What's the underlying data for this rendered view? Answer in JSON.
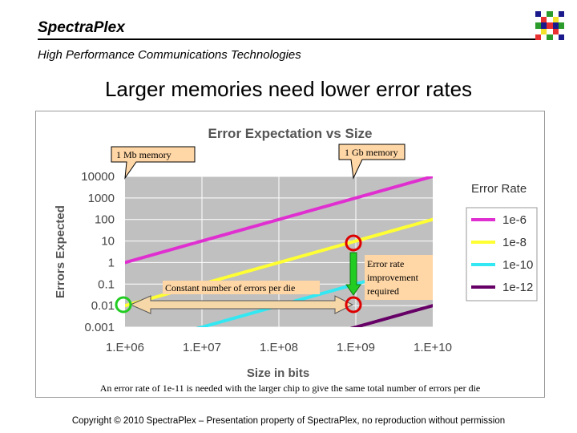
{
  "brand": {
    "name": "SpectraPlex",
    "tagline": "High Performance Communications Technologies"
  },
  "slide": {
    "title": "Larger memories need lower error rates"
  },
  "footer": {
    "copyright": "Copyright © 2010 SpectraPlex – Presentation property of SpectraPlex, no reproduction without permission"
  },
  "colors": {
    "plot_bg": "#c0c0c0",
    "grid": "#ffffff",
    "callout_bg": "#ffd6a5",
    "green_circle": "#22cc22",
    "red_circle": "#dd0000",
    "arrow_fill": "#f5d7a8",
    "arrow_green": "#22cc22"
  },
  "chart_data": {
    "type": "line",
    "title": "Error Expectation vs Size",
    "xlabel": "Size in bits",
    "ylabel": "Errors Expected",
    "x_scale": "log",
    "y_scale": "log",
    "xlim": [
      1000000,
      10000000000
    ],
    "ylim": [
      0.001,
      10000
    ],
    "x_ticks": [
      "1.E+06",
      "1.E+07",
      "1.E+08",
      "1.E+09",
      "1.E+10"
    ],
    "y_ticks": [
      "10000",
      "1000",
      "100",
      "10",
      "1",
      "0.1",
      "0.01",
      "0.001"
    ],
    "grid": true,
    "legend_title": "Error Rate",
    "legend_position": "right",
    "x": [
      1000000,
      10000000000
    ],
    "series": [
      {
        "name": "1e-6",
        "color": "#e02fd0",
        "values": [
          1,
          10000
        ]
      },
      {
        "name": "1e-8",
        "color": "#ffff33",
        "values": [
          0.01,
          100
        ]
      },
      {
        "name": "1e-10",
        "color": "#33e8f2",
        "values": [
          0.0001,
          1
        ]
      },
      {
        "name": "1e-12",
        "color": "#660066",
        "values": [
          1e-06,
          0.01
        ]
      }
    ],
    "annotations": {
      "callout_1mb": "1 Mb memory",
      "callout_1gb": "1 Gb memory",
      "constant_errors": "Constant number of errors per die",
      "improvement": "Error rate improvement required",
      "note": "An error rate of 1e-11 is needed with the larger chip to give the same total number of errors per die"
    }
  }
}
